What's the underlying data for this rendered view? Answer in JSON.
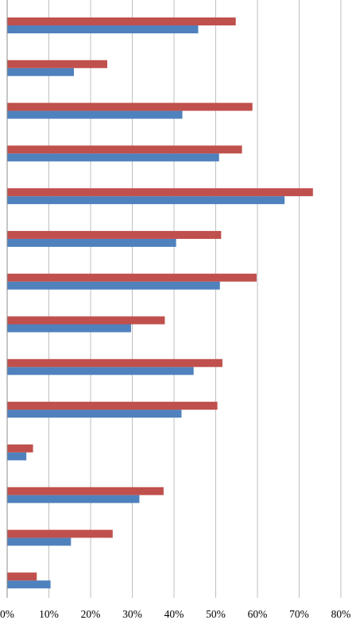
{
  "chart_data": {
    "type": "bar",
    "orientation": "horizontal",
    "title": "",
    "xlabel": "",
    "ylabel": "",
    "xlim": [
      0,
      80
    ],
    "x_ticks": [
      "0%",
      "10%",
      "20%",
      "30%",
      "40%",
      "50%",
      "60%",
      "70%",
      "80%"
    ],
    "grid": true,
    "legend": "none",
    "categories": [
      "",
      "",
      "",
      "",
      "",
      "",
      "",
      "",
      "",
      "",
      "",
      "",
      "",
      ""
    ],
    "series": [
      {
        "color": "#4f81bd",
        "values": [
          45.8,
          16.0,
          42.0,
          50.8,
          66.5,
          40.5,
          51.0,
          29.7,
          44.7,
          41.8,
          4.6,
          31.7,
          15.3,
          10.4
        ]
      },
      {
        "color": "#c0504d",
        "values": [
          54.8,
          24.0,
          58.8,
          56.3,
          73.3,
          51.3,
          59.8,
          37.8,
          51.6,
          50.4,
          6.2,
          37.5,
          25.3,
          7.1
        ]
      }
    ]
  }
}
